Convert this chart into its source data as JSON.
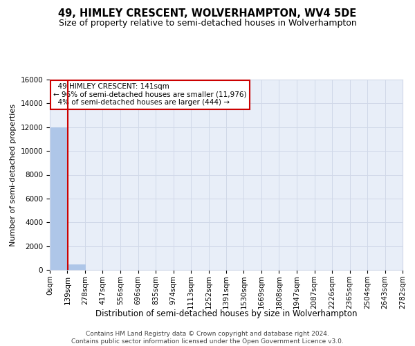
{
  "title": "49, HIMLEY CRESCENT, WOLVERHAMPTON, WV4 5DE",
  "subtitle": "Size of property relative to semi-detached houses in Wolverhampton",
  "xlabel": "Distribution of semi-detached houses by size in Wolverhampton",
  "ylabel": "Number of semi-detached properties",
  "footer_line1": "Contains HM Land Registry data © Crown copyright and database right 2024.",
  "footer_line2": "Contains public sector information licensed under the Open Government Licence v3.0.",
  "property_size": 141,
  "bar_edges": [
    0,
    139,
    278,
    417,
    556,
    696,
    835,
    974,
    1113,
    1252,
    1391,
    1530,
    1669,
    1808,
    1947,
    2087,
    2226,
    2365,
    2504,
    2643,
    2782
  ],
  "bar_heights": [
    11976,
    444,
    0,
    0,
    0,
    0,
    0,
    0,
    0,
    0,
    0,
    0,
    0,
    0,
    0,
    0,
    0,
    0,
    0,
    0
  ],
  "bar_color": "#aec6e8",
  "bar_edge_color": "#aec6e8",
  "grid_color": "#d0d8e8",
  "background_color": "#e8eef8",
  "red_line_color": "#cc0000",
  "annotation_text": "  49 HIMLEY CRESCENT: 141sqm\n← 96% of semi-detached houses are smaller (11,976)\n  4% of semi-detached houses are larger (444) →",
  "annotation_box_color": "#ffffff",
  "annotation_border_color": "#cc0000",
  "ylim": [
    0,
    16000
  ],
  "yticks": [
    0,
    2000,
    4000,
    6000,
    8000,
    10000,
    12000,
    14000,
    16000
  ],
  "tick_label_fontsize": 7.5,
  "title_fontsize": 10.5,
  "subtitle_fontsize": 9,
  "xlabel_fontsize": 8.5,
  "ylabel_fontsize": 8,
  "annotation_fontsize": 7.5,
  "footer_fontsize": 6.5
}
